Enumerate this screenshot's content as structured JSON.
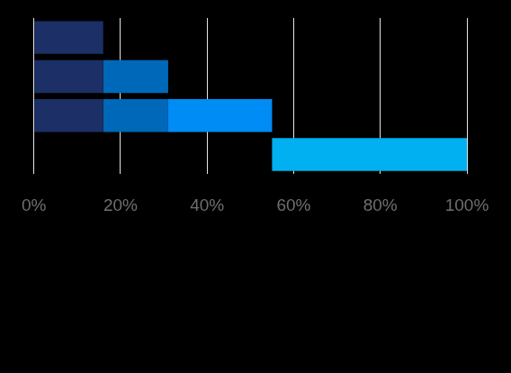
{
  "chart_data": {
    "type": "bar",
    "orientation": "horizontal",
    "stacked": true,
    "categories": [
      null,
      null,
      null,
      null
    ],
    "series": [
      {
        "color": "#1c2f66",
        "values": [
          16,
          16,
          16,
          null
        ]
      },
      {
        "color": "#0068b8",
        "values": [
          null,
          15,
          15,
          null
        ]
      },
      {
        "color": "#008cf5",
        "values": [
          null,
          null,
          24,
          null
        ]
      },
      {
        "color": "#00b0f0",
        "values": [
          null,
          null,
          null,
          45
        ]
      }
    ],
    "xlim": [
      0,
      100
    ],
    "xticks": [
      {
        "value": 0,
        "label": "0%"
      },
      {
        "value": 20,
        "label": "20%"
      },
      {
        "value": 40,
        "label": "40%"
      },
      {
        "value": 60,
        "label": "60%"
      },
      {
        "value": 80,
        "label": "80%"
      },
      {
        "value": 100,
        "label": "100%"
      }
    ],
    "grid": true,
    "tick_labels": "x"
  }
}
